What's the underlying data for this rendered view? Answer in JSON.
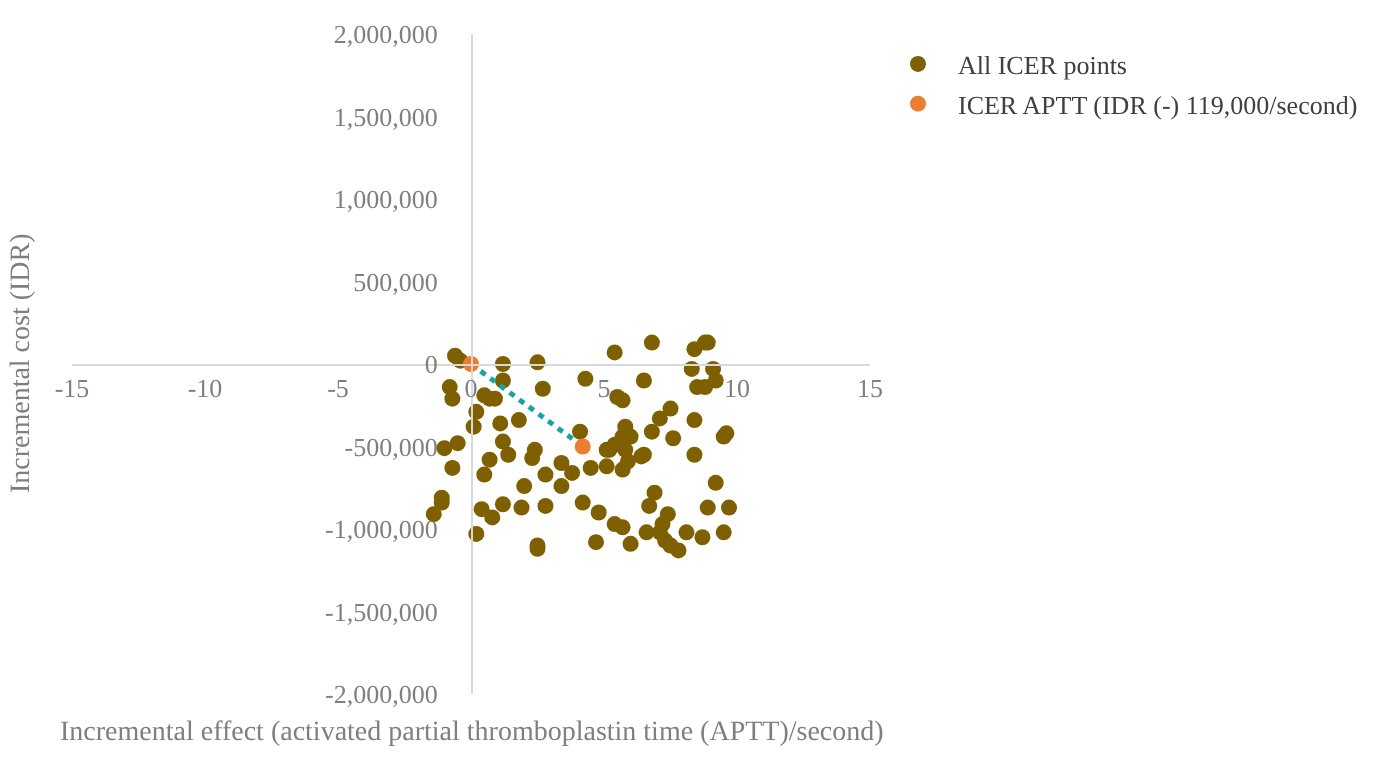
{
  "chart_data": {
    "type": "scatter",
    "xlabel": "Incremental effect (activated partial thromboplastin time (APTT)/second)",
    "ylabel": "Incremental cost (IDR)",
    "xlim": [
      -15,
      15
    ],
    "xticks": [
      -15,
      -10,
      -5,
      0,
      5,
      10,
      15
    ],
    "ylim": [
      -2000000,
      2000000
    ],
    "yticks": [
      {
        "value": -2000000,
        "label": "-2,000,000"
      },
      {
        "value": -1500000,
        "label": "-1,500,000"
      },
      {
        "value": -1000000,
        "label": "-1,000,000"
      },
      {
        "value": -500000,
        "label": "-500,000"
      },
      {
        "value": 0,
        "label": "0"
      },
      {
        "value": 500000,
        "label": "500,000"
      },
      {
        "value": 1000000,
        "label": "1,000,000"
      },
      {
        "value": 1500000,
        "label": "1,500,000"
      },
      {
        "value": 2000000,
        "label": "2,000,000"
      }
    ],
    "grid": false,
    "legend": "top right",
    "marker": "circle",
    "series": [
      {
        "name": "All ICER points",
        "color": "#7f6000",
        "x": [
          -0.6,
          -0.4,
          -0.8,
          -0.7,
          -0.5,
          -1.0,
          -0.7,
          -1.1,
          -1.1,
          -1.4,
          0.2,
          0.1,
          0.5,
          0.7,
          0.9,
          1.2,
          1.2,
          1.1,
          1.2,
          1.4,
          1.8,
          2.5,
          2.7,
          4.3,
          4.1,
          0.7,
          0.5,
          0.4,
          0.8,
          1.2,
          0.2,
          1.9,
          2.0,
          2.4,
          2.3,
          2.8,
          2.8,
          3.4,
          3.4,
          3.8,
          4.2,
          4.5,
          2.5,
          2.5,
          4.7,
          4.8,
          5.1,
          5.1,
          5.4,
          6.8,
          8.4,
          8.8,
          8.9,
          8.3,
          9.1,
          9.2,
          8.5,
          8.8,
          6.5,
          5.5,
          5.7,
          7.1,
          7.5,
          8.4,
          6.8,
          5.8,
          5.7,
          6.0,
          5.4,
          5.2,
          5.8,
          6.5,
          6.4,
          7.6,
          8.4,
          9.5,
          9.6,
          5.7,
          5.9,
          9.2,
          6.9,
          6.7,
          8.9,
          9.7,
          5.4,
          5.7,
          6.6,
          7.2,
          7.4,
          7.1,
          7.3,
          7.5,
          7.8,
          8.1,
          8.7,
          9.5,
          6.0
        ],
        "values": [
          50000,
          20000,
          -140000,
          -210000,
          -480000,
          -510000,
          -630000,
          -810000,
          -840000,
          -910000,
          -290000,
          -380000,
          -190000,
          -210000,
          -210000,
          0,
          -100000,
          -360000,
          -470000,
          -550000,
          -340000,
          10000,
          -150000,
          -90000,
          -410000,
          -580000,
          -670000,
          -880000,
          -930000,
          -850000,
          -1030000,
          -870000,
          -740000,
          -520000,
          -570000,
          -670000,
          -860000,
          -600000,
          -740000,
          -660000,
          -840000,
          -630000,
          -1100000,
          -1120000,
          -1080000,
          -900000,
          -520000,
          -620000,
          70000,
          130000,
          90000,
          130000,
          130000,
          -30000,
          -30000,
          -100000,
          -140000,
          -140000,
          -100000,
          -200000,
          -220000,
          -330000,
          -270000,
          -340000,
          -410000,
          -380000,
          -440000,
          -440000,
          -490000,
          -520000,
          -520000,
          -550000,
          -560000,
          -450000,
          -550000,
          -440000,
          -420000,
          -640000,
          -590000,
          -720000,
          -780000,
          -860000,
          -870000,
          -870000,
          -970000,
          -990000,
          -1020000,
          -970000,
          -910000,
          -1020000,
          -1070000,
          -1100000,
          -1130000,
          -1020000,
          -1050000,
          -1020000,
          -1090000
        ]
      },
      {
        "name": "ICER APTT (IDR (-) 119,000/second)",
        "color": "#ed7d31",
        "x": [
          0,
          4.2
        ],
        "values": [
          0,
          -500000
        ]
      },
      {
        "type": "line",
        "color": "#1aa3a3",
        "line_style": "dotted",
        "marker": "none",
        "x": [
          0,
          4.2
        ],
        "values": [
          0,
          -500000
        ]
      }
    ]
  }
}
